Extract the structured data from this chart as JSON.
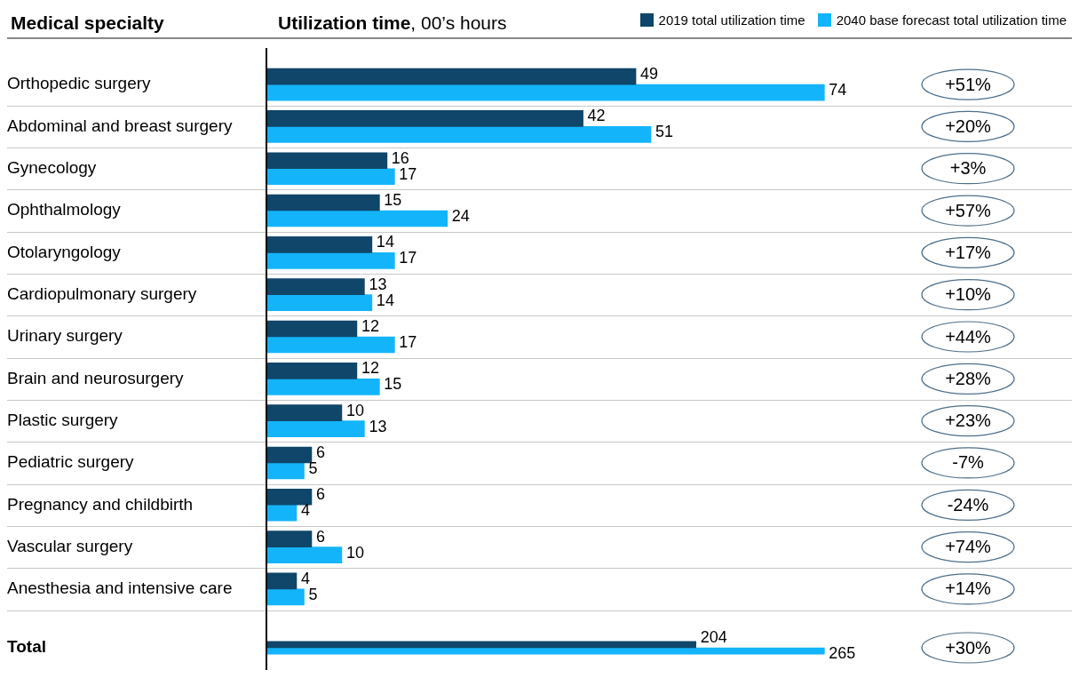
{
  "chart_data": [
    {
      "type": "bar",
      "orientation": "horizontal",
      "ylabel": "Medical specialty",
      "xlabel": "Utilization time, 00’s hours",
      "categories": [
        "Orthopedic surgery",
        "Abdominal and breast surgery",
        "Gynecology",
        "Ophthalmology",
        "Otolaryngology",
        "Cardiopulmonary surgery",
        "Urinary surgery",
        "Brain and neurosurgery",
        "Plastic surgery",
        "Pediatric surgery",
        "Pregnancy and childbirth",
        "Vascular surgery",
        "Anesthesia and intensive care"
      ],
      "series": [
        {
          "name": "2019 total utilization time",
          "color": "#0f4669",
          "values": [
            49,
            42,
            16,
            15,
            14,
            13,
            12,
            12,
            10,
            6,
            6,
            6,
            4
          ]
        },
        {
          "name": "2040 base forecast total utilization time",
          "color": "#14b4fa",
          "values": [
            74,
            51,
            17,
            24,
            17,
            14,
            17,
            15,
            13,
            5,
            4,
            10,
            5
          ]
        }
      ],
      "data_labels": true,
      "legend": "top right",
      "grid": "y",
      "annotations": [
        "+51%",
        "+20%",
        "+3%",
        "+57%",
        "+17%",
        "+10%",
        "+44%",
        "+28%",
        "+23%",
        "-7%",
        "-24%",
        "+74%",
        "+14%"
      ]
    },
    {
      "type": "bar",
      "orientation": "horizontal",
      "categories": [
        "Total"
      ],
      "series": [
        {
          "color": "#0f4669",
          "values": [
            204
          ]
        },
        {
          "color": "#14b4fa",
          "values": [
            265
          ]
        }
      ],
      "data_labels": true,
      "annotations": [
        "+30%"
      ]
    }
  ]
}
